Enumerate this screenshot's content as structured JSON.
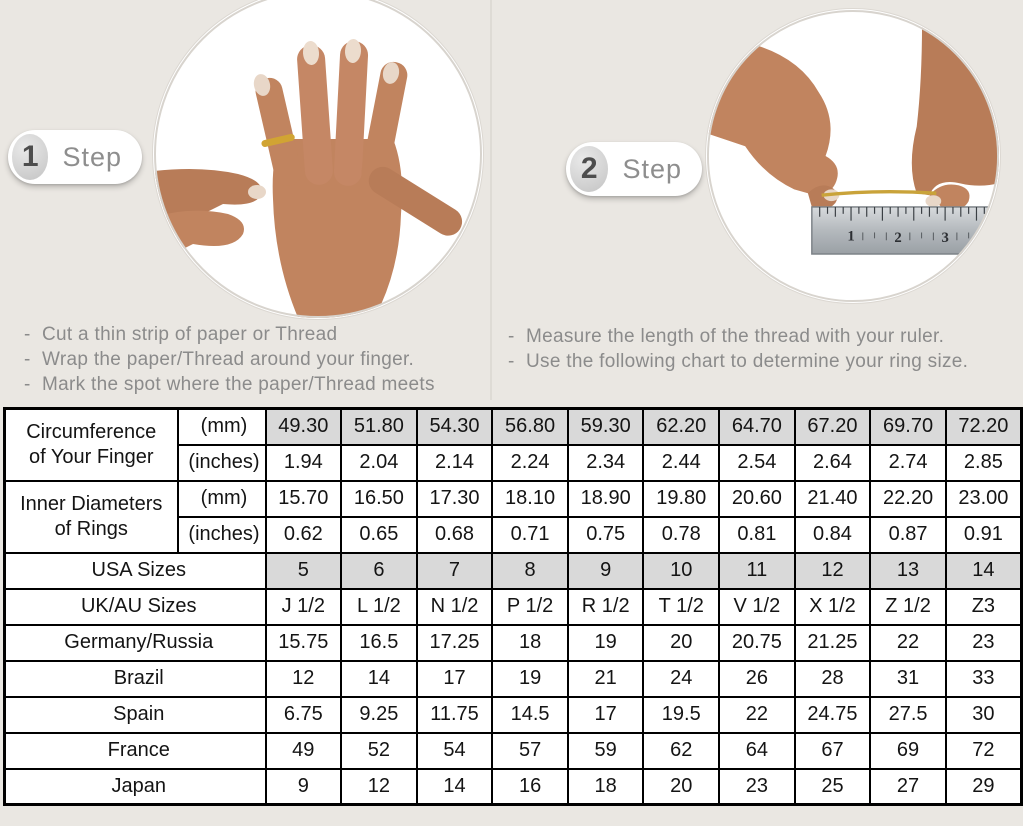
{
  "steps": [
    {
      "number": "1",
      "label": "Step",
      "instructions": [
        "Cut a thin strip of paper or Thread",
        "Wrap the paper/Thread around your finger.",
        "Mark the spot where the paper/Thread meets"
      ]
    },
    {
      "number": "2",
      "label": "Step",
      "instructions": [
        "Measure the length of the thread with your ruler.",
        "Use the following chart to determine your ring size."
      ]
    }
  ],
  "table": {
    "row_groups": [
      {
        "label_line1": "Circumference",
        "label_line2": "of Your Finger",
        "sub_rows": [
          {
            "unit": "(mm)",
            "shaded": true,
            "values": [
              "49.30",
              "51.80",
              "54.30",
              "56.80",
              "59.30",
              "62.20",
              "64.70",
              "67.20",
              "69.70",
              "72.20"
            ]
          },
          {
            "unit": "(inches)",
            "shaded": false,
            "values": [
              "1.94",
              "2.04",
              "2.14",
              "2.24",
              "2.34",
              "2.44",
              "2.54",
              "2.64",
              "2.74",
              "2.85"
            ]
          }
        ]
      },
      {
        "label_line1": "Inner Diameters",
        "label_line2": "of Rings",
        "sub_rows": [
          {
            "unit": "(mm)",
            "shaded": false,
            "values": [
              "15.70",
              "16.50",
              "17.30",
              "18.10",
              "18.90",
              "19.80",
              "20.60",
              "21.40",
              "22.20",
              "23.00"
            ]
          },
          {
            "unit": "(inches)",
            "shaded": false,
            "values": [
              "0.62",
              "0.65",
              "0.68",
              "0.71",
              "0.75",
              "0.78",
              "0.81",
              "0.84",
              "0.87",
              "0.91"
            ]
          }
        ]
      }
    ],
    "size_rows": [
      {
        "label": "USA Sizes",
        "shaded": true,
        "values": [
          "5",
          "6",
          "7",
          "8",
          "9",
          "10",
          "11",
          "12",
          "13",
          "14"
        ]
      },
      {
        "label": "UK/AU Sizes",
        "shaded": false,
        "values": [
          "J 1/2",
          "L 1/2",
          "N 1/2",
          "P 1/2",
          "R 1/2",
          "T 1/2",
          "V 1/2",
          "X 1/2",
          "Z 1/2",
          "Z3"
        ]
      },
      {
        "label": "Germany/Russia",
        "shaded": false,
        "values": [
          "15.75",
          "16.5",
          "17.25",
          "18",
          "19",
          "20",
          "20.75",
          "21.25",
          "22",
          "23"
        ]
      },
      {
        "label": "Brazil",
        "shaded": false,
        "values": [
          "12",
          "14",
          "17",
          "19",
          "21",
          "24",
          "26",
          "28",
          "31",
          "33"
        ]
      },
      {
        "label": "Spain",
        "shaded": false,
        "values": [
          "6.75",
          "9.25",
          "11.75",
          "14.5",
          "17",
          "19.5",
          "22",
          "24.75",
          "27.5",
          "30"
        ]
      },
      {
        "label": "France",
        "shaded": false,
        "values": [
          "49",
          "52",
          "54",
          "57",
          "59",
          "62",
          "64",
          "67",
          "69",
          "72"
        ]
      },
      {
        "label": "Japan",
        "shaded": false,
        "values": [
          "9",
          "12",
          "14",
          "16",
          "18",
          "20",
          "23",
          "25",
          "27",
          "29"
        ]
      }
    ]
  },
  "colors": {
    "background": "#eae7e2",
    "shaded_cell": "#d9d9d9",
    "table_border": "#000000",
    "step_text": "#8e8e8e",
    "instruction_text": "#8b8b8b",
    "gold_ring": "#c9a33a"
  }
}
